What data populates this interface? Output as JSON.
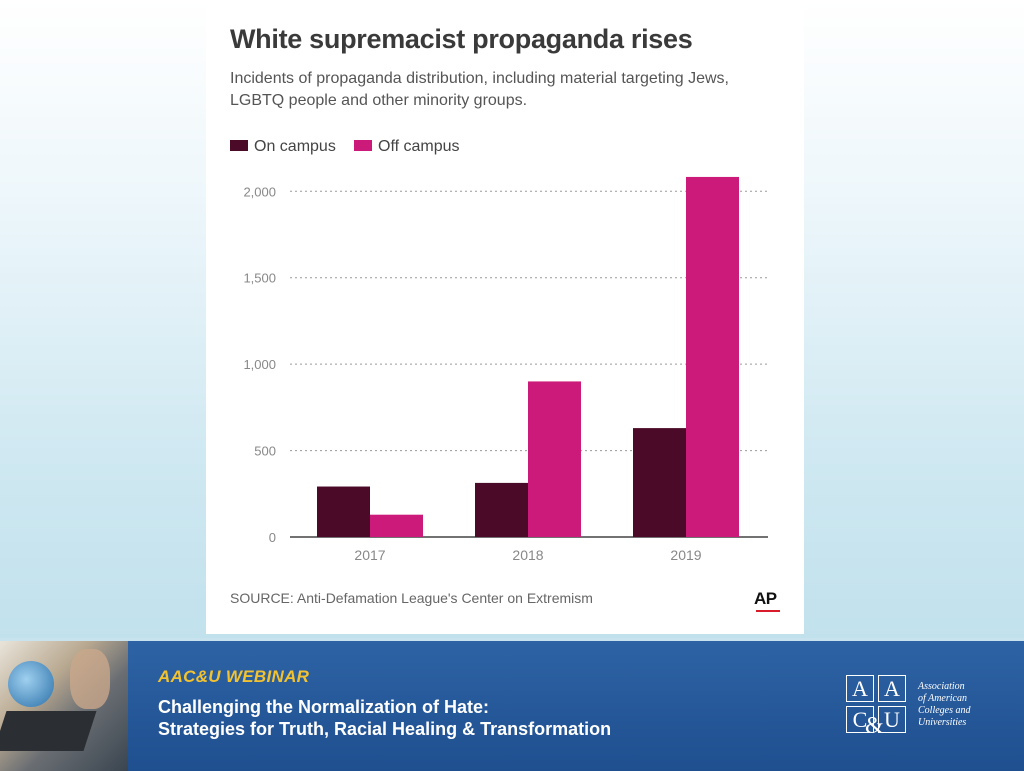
{
  "chart": {
    "title": "White supremacist propaganda rises",
    "subtitle": "Incidents of propaganda distribution, including material targeting Jews, LGBTQ people and other minority groups.",
    "source": "SOURCE: Anti-Defamation League's Center on Extremism",
    "credit": "AP"
  },
  "colors": {
    "on_campus": "#4a0a28",
    "off_campus": "#cc1a7a",
    "accent_red": "#d91c2b"
  },
  "chart_data": {
    "type": "bar",
    "title": "White supremacist propaganda rises",
    "categories": [
      "2017",
      "2018",
      "2019"
    ],
    "series": [
      {
        "name": "On campus",
        "values": [
          292,
          313,
          630
        ]
      },
      {
        "name": "Off campus",
        "values": [
          129,
          900,
          2083
        ]
      }
    ],
    "yticks": [
      0,
      500,
      1000,
      1500,
      2000
    ],
    "ytick_labels": [
      "0",
      "500",
      "1,000",
      "1,500",
      "2,000"
    ],
    "ylim": [
      0,
      2100
    ],
    "xlabel": "",
    "ylabel": "",
    "legend": "top-left",
    "grid": true
  },
  "footer": {
    "label": "AAC&U WEBINAR",
    "line1": "Challenging the Normalization of Hate:",
    "line2": "Strategies for Truth, Racial Healing & Transformation",
    "logo_letters": [
      "A",
      "A",
      "C",
      "U"
    ],
    "logo_ampersand": "&",
    "org_name": [
      "Association",
      "of American",
      "Colleges and",
      "Universities"
    ]
  }
}
